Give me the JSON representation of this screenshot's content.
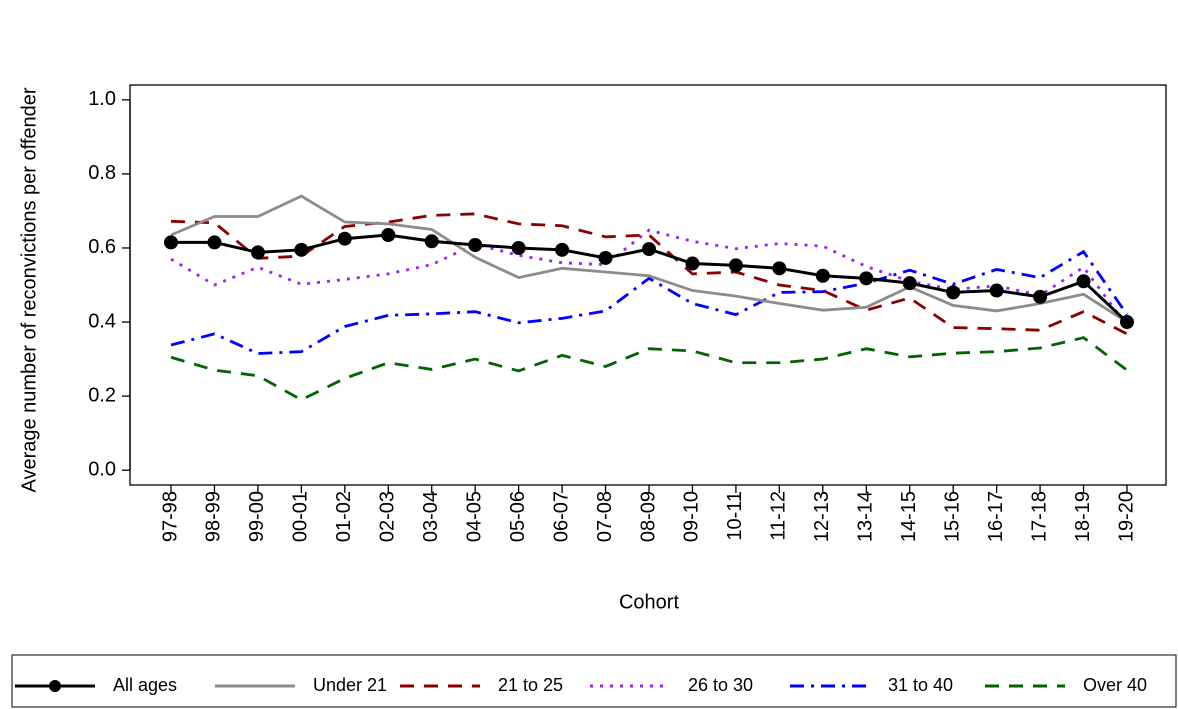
{
  "chart_data": {
    "type": "line",
    "ylabel": "Average number of reconvictions per offender",
    "xlabel": "Cohort",
    "categories": [
      "97-98",
      "98-99",
      "99-00",
      "00-01",
      "01-02",
      "02-03",
      "03-04",
      "04-05",
      "05-06",
      "06-07",
      "07-08",
      "08-09",
      "09-10",
      "10-11",
      "11-12",
      "12-13",
      "13-14",
      "14-15",
      "15-16",
      "16-17",
      "17-18",
      "18-19",
      "19-20"
    ],
    "ylim": [
      -0.04,
      1.04
    ],
    "yticks": [
      {
        "value": 0,
        "label": "0.0"
      },
      0.2,
      0.4,
      0.6,
      0.8,
      {
        "value": 1,
        "label": "1.0"
      }
    ],
    "legend": "bottom",
    "series": [
      {
        "name": "All ages",
        "color": "#000000",
        "style": "solid",
        "marker": "circle",
        "values": [
          0.615,
          0.615,
          0.588,
          0.595,
          0.625,
          0.635,
          0.618,
          0.608,
          0.6,
          0.595,
          0.573,
          0.597,
          0.558,
          0.553,
          0.545,
          0.525,
          0.518,
          0.505,
          0.48,
          0.485,
          0.468,
          0.51,
          0.4
        ]
      },
      {
        "name": "Under 21",
        "color": "#8c8c8c",
        "style": "solid",
        "values": [
          0.635,
          0.685,
          0.685,
          0.74,
          0.67,
          0.665,
          0.65,
          0.575,
          0.52,
          0.545,
          0.535,
          0.525,
          0.485,
          0.47,
          0.45,
          0.432,
          0.44,
          0.495,
          0.445,
          0.43,
          0.45,
          0.475,
          0.4
        ]
      },
      {
        "name": "21 to 25",
        "color": "#8b0000",
        "style": "dashed",
        "values": [
          0.672,
          0.668,
          0.572,
          0.578,
          0.658,
          0.67,
          0.688,
          0.692,
          0.665,
          0.66,
          0.63,
          0.635,
          0.53,
          0.535,
          0.5,
          0.485,
          0.432,
          0.465,
          0.385,
          0.382,
          0.378,
          0.428,
          0.368
        ]
      },
      {
        "name": "26 to 30",
        "color": "#a020f0",
        "style": "dotted",
        "values": [
          0.57,
          0.5,
          0.548,
          0.502,
          0.515,
          0.53,
          0.555,
          0.61,
          0.58,
          0.56,
          0.555,
          0.648,
          0.618,
          0.598,
          0.612,
          0.605,
          0.55,
          0.51,
          0.488,
          0.498,
          0.472,
          0.548,
          0.39
        ]
      },
      {
        "name": "31 to 40",
        "color": "#0000ff",
        "style": "dashdot",
        "values": [
          0.338,
          0.368,
          0.315,
          0.32,
          0.388,
          0.418,
          0.422,
          0.428,
          0.398,
          0.41,
          0.43,
          0.518,
          0.45,
          0.42,
          0.48,
          0.482,
          0.505,
          0.54,
          0.502,
          0.542,
          0.52,
          0.59,
          0.42
        ]
      },
      {
        "name": "Over 40",
        "color": "#006400",
        "style": "dashed",
        "values": [
          0.305,
          0.27,
          0.255,
          0.19,
          0.248,
          0.29,
          0.272,
          0.3,
          0.268,
          0.31,
          0.28,
          0.328,
          0.322,
          0.29,
          0.29,
          0.3,
          0.328,
          0.306,
          0.316,
          0.32,
          0.33,
          0.358,
          0.27
        ]
      }
    ]
  }
}
